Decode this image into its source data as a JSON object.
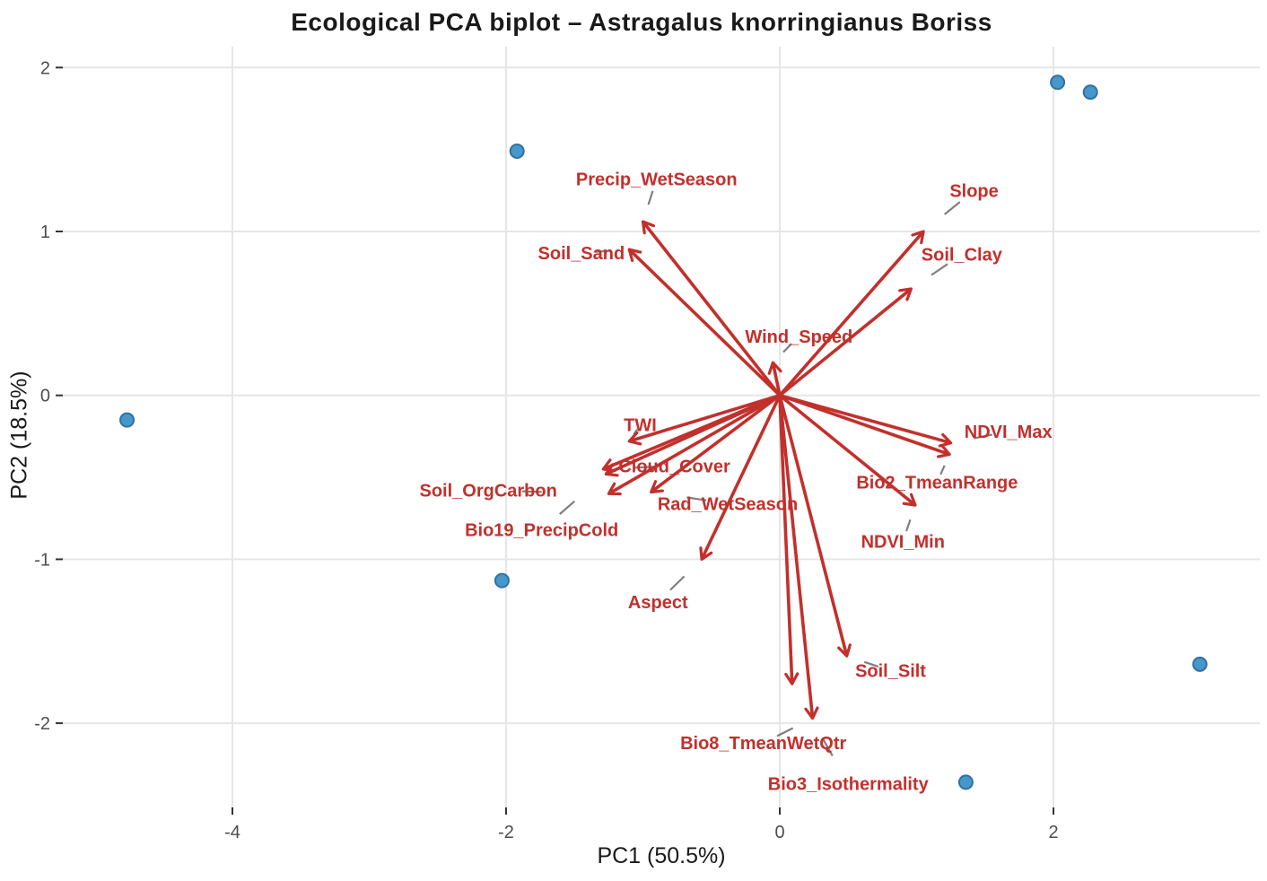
{
  "chart_data": {
    "type": "scatter",
    "subtype": "pca-biplot",
    "title": "Ecological PCA biplot – Astragalus knorringianus Boriss",
    "xlabel": "PC1 (50.5%)",
    "ylabel": "PC2 (18.5%)",
    "x_ticks": [
      -4,
      -2,
      0,
      2
    ],
    "y_ticks": [
      2,
      1,
      0,
      -1,
      -2
    ],
    "xlim": [
      -5.25,
      3.5
    ],
    "ylim": [
      -2.55,
      2.15
    ],
    "grid": true,
    "legend": "none",
    "points": [
      {
        "x": -4.77,
        "y": -0.15
      },
      {
        "x": -1.92,
        "y": 1.49
      },
      {
        "x": -2.03,
        "y": -1.13
      },
      {
        "x": 2.03,
        "y": 1.91
      },
      {
        "x": 2.27,
        "y": 1.85
      },
      {
        "x": 3.07,
        "y": -1.64
      },
      {
        "x": 1.36,
        "y": -2.36
      }
    ],
    "loadings": [
      {
        "name": "Precip_WetSeason",
        "pc1": -1.0,
        "pc2": 1.06,
        "label_x": -0.9,
        "label_y": 1.32
      },
      {
        "name": "Soil_Sand",
        "pc1": -1.1,
        "pc2": 0.89,
        "label_x": -1.45,
        "label_y": 0.87
      },
      {
        "name": "Slope",
        "pc1": 1.05,
        "pc2": 1.0,
        "label_x": 1.42,
        "label_y": 1.25
      },
      {
        "name": "Soil_Clay",
        "pc1": 0.96,
        "pc2": 0.65,
        "label_x": 1.33,
        "label_y": 0.86
      },
      {
        "name": "Wind_Speed",
        "pc1": -0.05,
        "pc2": 0.2,
        "label_x": 0.14,
        "label_y": 0.36
      },
      {
        "name": "TWI",
        "pc1": -1.1,
        "pc2": -0.28,
        "label_x": -1.02,
        "label_y": -0.18
      },
      {
        "name": "NDVI_Max",
        "pc1": 1.25,
        "pc2": -0.29,
        "label_x": 1.67,
        "label_y": -0.22
      },
      {
        "name": "Cloud_Cover",
        "pc1": -1.29,
        "pc2": -0.45,
        "label_x": -0.77,
        "label_y": -0.43
      },
      {
        "name": "Bio2_TmeanRange",
        "pc1": 1.24,
        "pc2": -0.36,
        "label_x": 1.15,
        "label_y": -0.53
      },
      {
        "name": "Soil_OrgCarbon",
        "pc1": -1.25,
        "pc2": -0.6,
        "label_x": -2.13,
        "label_y": -0.58
      },
      {
        "name": "Rad_WetSeason",
        "pc1": -0.94,
        "pc2": -0.59,
        "label_x": -0.38,
        "label_y": -0.66
      },
      {
        "name": "Bio19_PrecipCold",
        "pc1": -1.27,
        "pc2": -0.48,
        "label_x": -1.74,
        "label_y": -0.82
      },
      {
        "name": "NDVI_Min",
        "pc1": 0.99,
        "pc2": -0.67,
        "label_x": 0.9,
        "label_y": -0.89
      },
      {
        "name": "Aspect",
        "pc1": -0.57,
        "pc2": -1.0,
        "label_x": -0.89,
        "label_y": -1.26
      },
      {
        "name": "Soil_Silt",
        "pc1": 0.49,
        "pc2": -1.59,
        "label_x": 0.81,
        "label_y": -1.68
      },
      {
        "name": "Bio8_TmeanWetQtr",
        "pc1": 0.24,
        "pc2": -1.97,
        "label_x": -0.12,
        "label_y": -2.12
      },
      {
        "name": "Bio3_Isothermality",
        "pc1": 0.09,
        "pc2": -1.76,
        "label_x": 0.5,
        "label_y": -2.37
      }
    ]
  },
  "colors": {
    "arrow": "#c2302c",
    "loading_label": "#c2302c",
    "point_fill": "#4697cb",
    "point_stroke": "#31719f",
    "gridline": "#e6e6e6",
    "leader": "#7f7f7f",
    "tick": "#333333",
    "tick_label": "#4d4d4d",
    "background": "#ffffff"
  }
}
